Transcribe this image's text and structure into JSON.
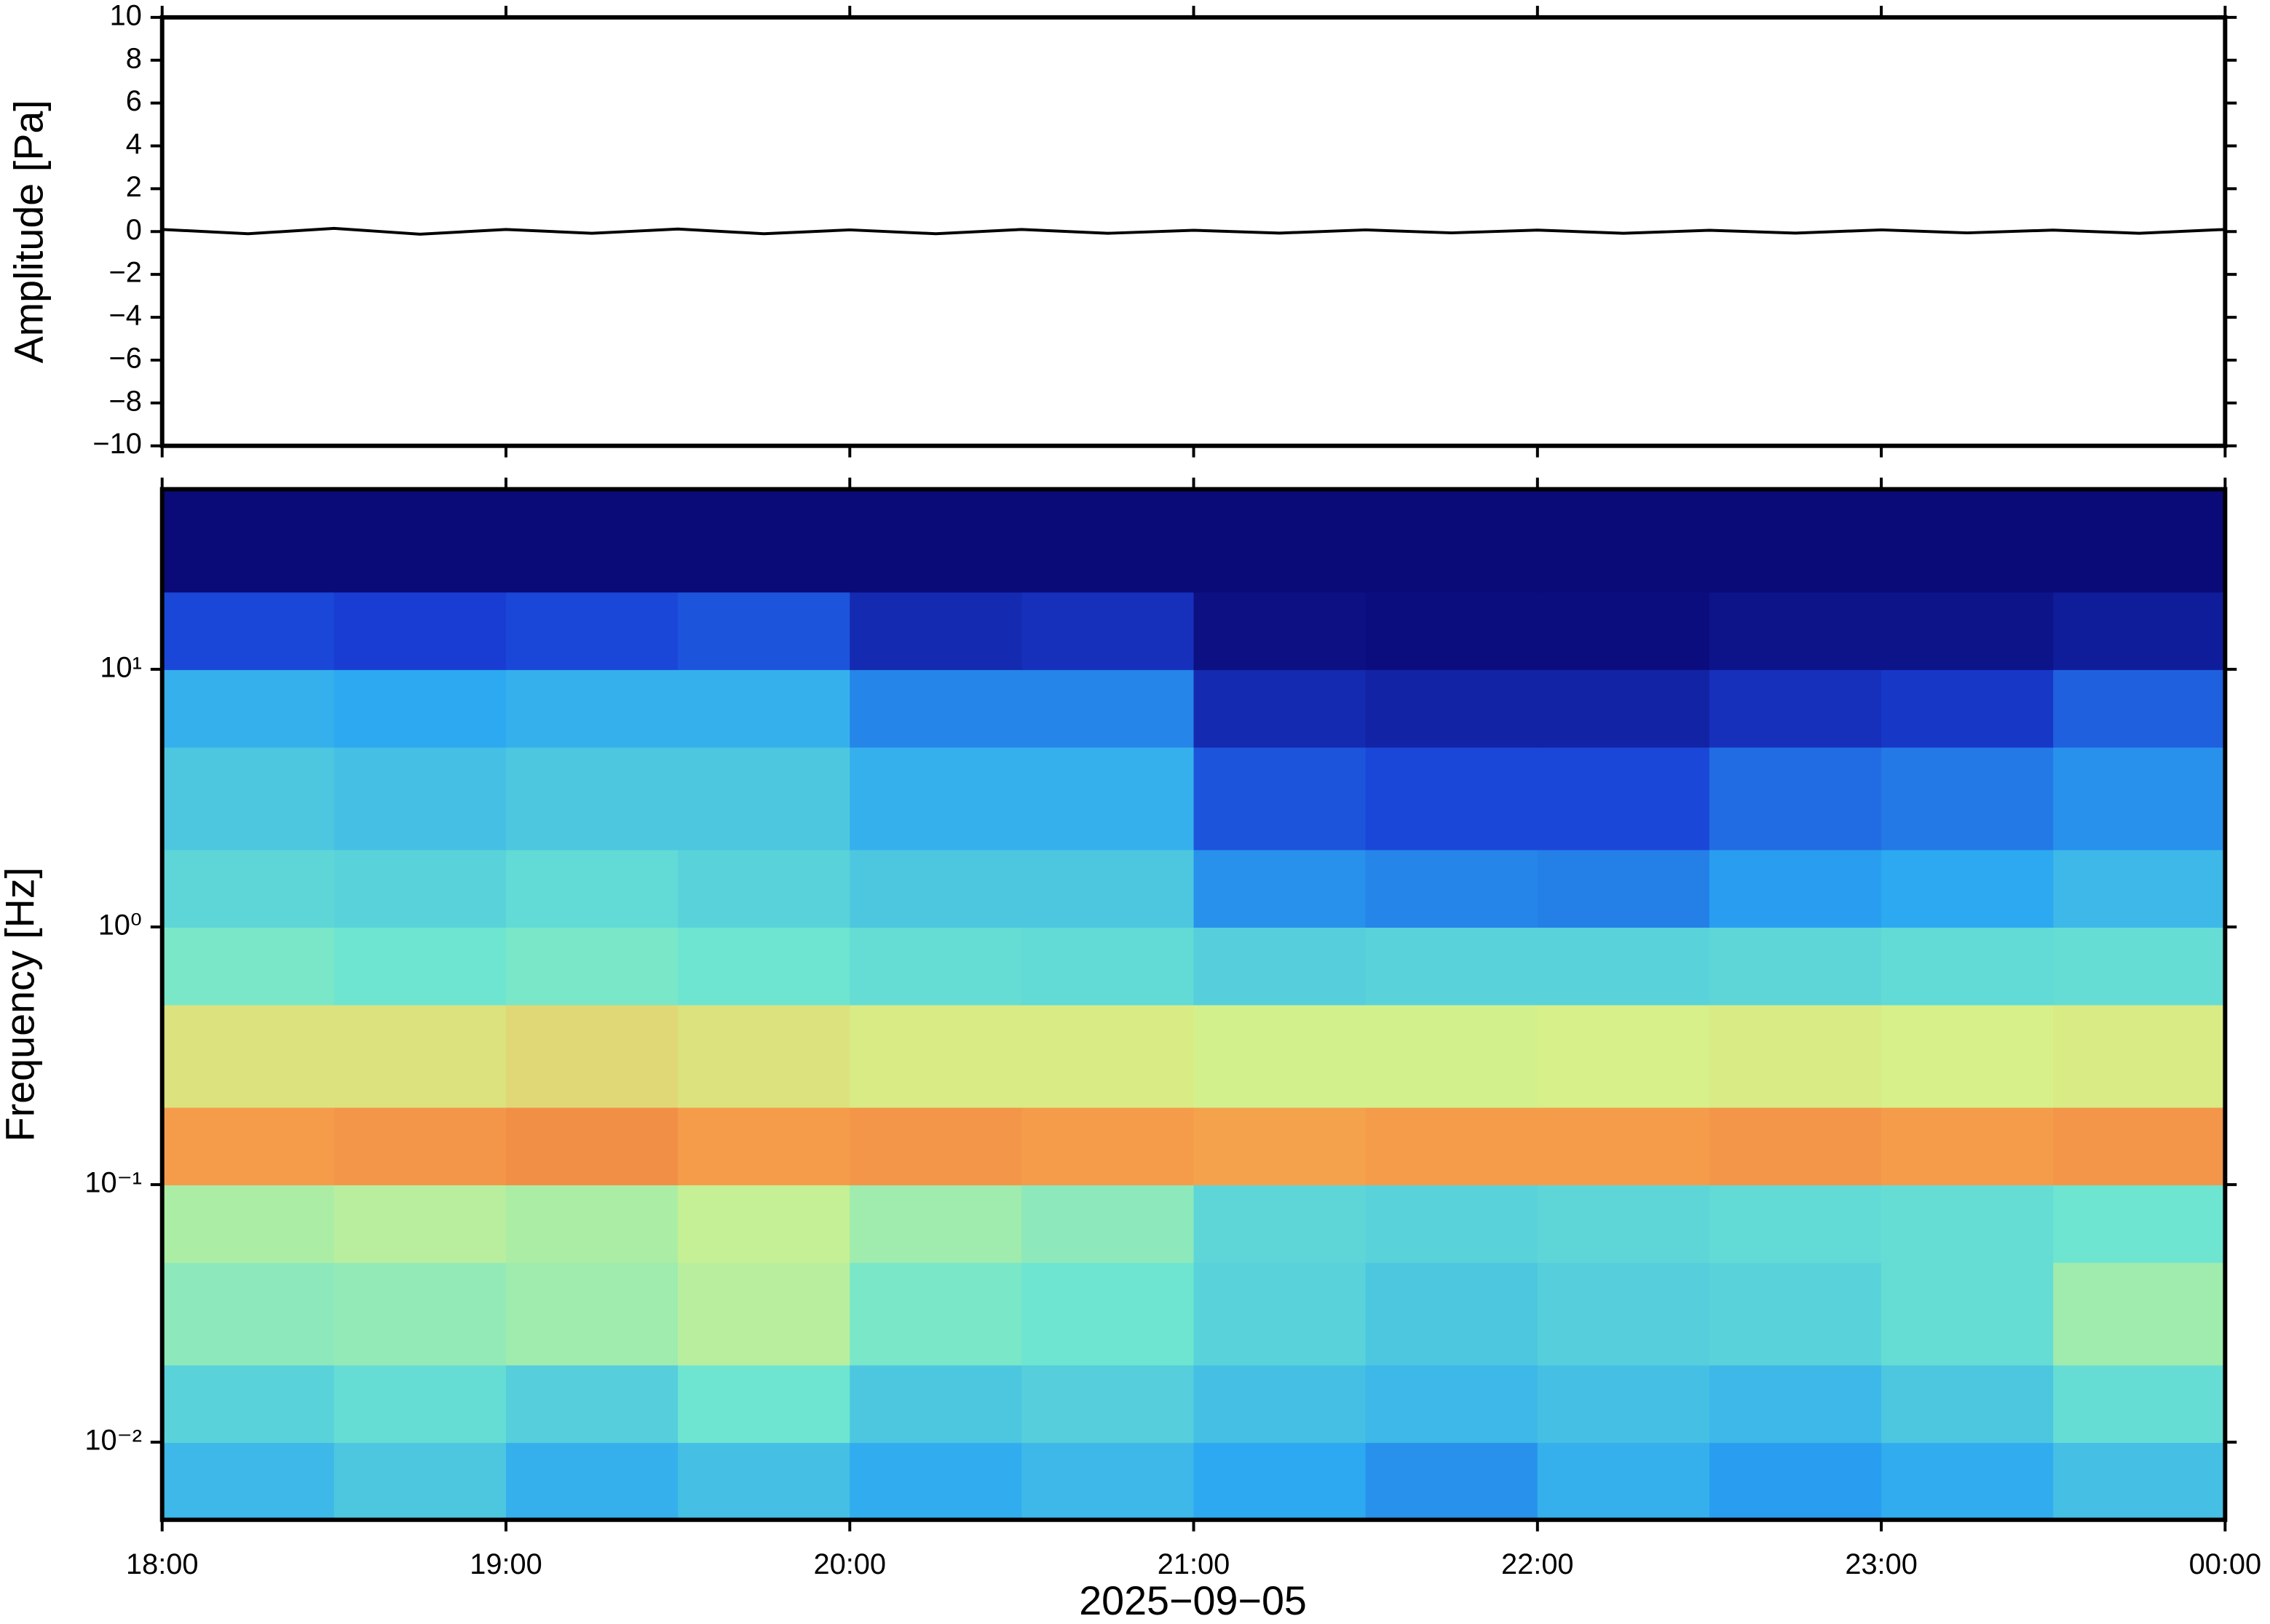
{
  "chart_data": [
    {
      "type": "line",
      "ylabel": "Amplitude [Pa]",
      "color": "#000000",
      "x": [
        18,
        18.25,
        18.5,
        18.75,
        19,
        19.25,
        19.5,
        19.75,
        20,
        20.25,
        20.5,
        20.75,
        21,
        21.25,
        21.5,
        21.75,
        22,
        22.25,
        22.5,
        22.75,
        23,
        23.25,
        23.5,
        23.75,
        24
      ],
      "values": [
        0.1,
        -0.1,
        0.15,
        -0.12,
        0.1,
        -0.08,
        0.12,
        -0.1,
        0.08,
        -0.1,
        0.1,
        -0.08,
        0.06,
        -0.07,
        0.08,
        -0.06,
        0.07,
        -0.08,
        0.06,
        -0.07,
        0.08,
        -0.06,
        0.07,
        -0.08,
        0.1
      ],
      "xlim": [
        18,
        24
      ],
      "ylim": [
        -10,
        10
      ],
      "yticks": [
        {
          "value": -10,
          "label": "−10"
        },
        {
          "value": -8,
          "label": "−8"
        },
        {
          "value": -6,
          "label": "−6"
        },
        {
          "value": -4,
          "label": "−4"
        },
        {
          "value": -2,
          "label": "−2"
        },
        0,
        2,
        4,
        6,
        8,
        10
      ]
    },
    {
      "type": "heatmap",
      "ylabel": "Frequency [Hz]",
      "xlabel": "2025−09−05",
      "xbins": [
        18,
        18.5,
        19,
        19.5,
        20,
        20.5,
        21,
        21.5,
        22,
        22.5,
        23,
        23.5,
        24
      ],
      "ybins": [
        0.005,
        0.01,
        0.02,
        0.05,
        0.1,
        0.2,
        0.5,
        1,
        2,
        5,
        10,
        20,
        50
      ],
      "z": [
        [
          0.38,
          0.42,
          0.36,
          0.4,
          0.35,
          0.38,
          0.34,
          0.3,
          0.36,
          0.32,
          0.35,
          0.4
        ],
        [
          0.45,
          0.48,
          0.44,
          0.5,
          0.42,
          0.44,
          0.4,
          0.38,
          0.4,
          0.38,
          0.42,
          0.48
        ],
        [
          0.55,
          0.56,
          0.58,
          0.62,
          0.52,
          0.5,
          0.45,
          0.42,
          0.44,
          0.45,
          0.48,
          0.58
        ],
        [
          0.6,
          0.62,
          0.6,
          0.64,
          0.58,
          0.55,
          0.46,
          0.45,
          0.46,
          0.47,
          0.48,
          0.5
        ],
        [
          0.84,
          0.85,
          0.86,
          0.84,
          0.85,
          0.84,
          0.83,
          0.84,
          0.84,
          0.85,
          0.84,
          0.85
        ],
        [
          0.7,
          0.7,
          0.72,
          0.7,
          0.68,
          0.68,
          0.66,
          0.66,
          0.67,
          0.68,
          0.67,
          0.68
        ],
        [
          0.52,
          0.5,
          0.52,
          0.5,
          0.48,
          0.47,
          0.44,
          0.45,
          0.45,
          0.46,
          0.47,
          0.48
        ],
        [
          0.46,
          0.45,
          0.47,
          0.45,
          0.42,
          0.42,
          0.3,
          0.28,
          0.27,
          0.32,
          0.34,
          0.38
        ],
        [
          0.42,
          0.4,
          0.42,
          0.42,
          0.36,
          0.36,
          0.2,
          0.18,
          0.18,
          0.24,
          0.26,
          0.3
        ],
        [
          0.36,
          0.34,
          0.36,
          0.36,
          0.28,
          0.28,
          0.1,
          0.08,
          0.08,
          0.12,
          0.14,
          0.22
        ],
        [
          0.18,
          0.16,
          0.18,
          0.2,
          0.1,
          0.12,
          0.02,
          0.01,
          0.01,
          0.03,
          0.03,
          0.06
        ],
        [
          0,
          0,
          0,
          0,
          0,
          0,
          0,
          0,
          0,
          0,
          0,
          0
        ]
      ],
      "zlim": [
        0,
        1
      ],
      "colormap": [
        "#0a0a78",
        "#1a3fd6",
        "#2aa6f2",
        "#6ee5d0",
        "#d6f28a",
        "#f6a04c",
        "#d8382a"
      ],
      "xlim": [
        18,
        24
      ],
      "xticks": [
        {
          "value": 18,
          "label": "18:00"
        },
        {
          "value": 19,
          "label": "19:00"
        },
        {
          "value": 20,
          "label": "20:00"
        },
        {
          "value": 21,
          "label": "21:00"
        },
        {
          "value": 22,
          "label": "22:00"
        },
        {
          "value": 23,
          "label": "23:00"
        },
        {
          "value": 24,
          "label": "00:00"
        }
      ],
      "yscale": "log",
      "ylim": [
        0.005,
        50
      ],
      "yticks": [
        {
          "value": 0.01,
          "label": "10⁻²"
        },
        {
          "value": 0.1,
          "label": "10⁻¹"
        },
        {
          "value": 1,
          "label": "10⁰"
        },
        {
          "value": 10,
          "label": "10¹"
        }
      ]
    }
  ]
}
